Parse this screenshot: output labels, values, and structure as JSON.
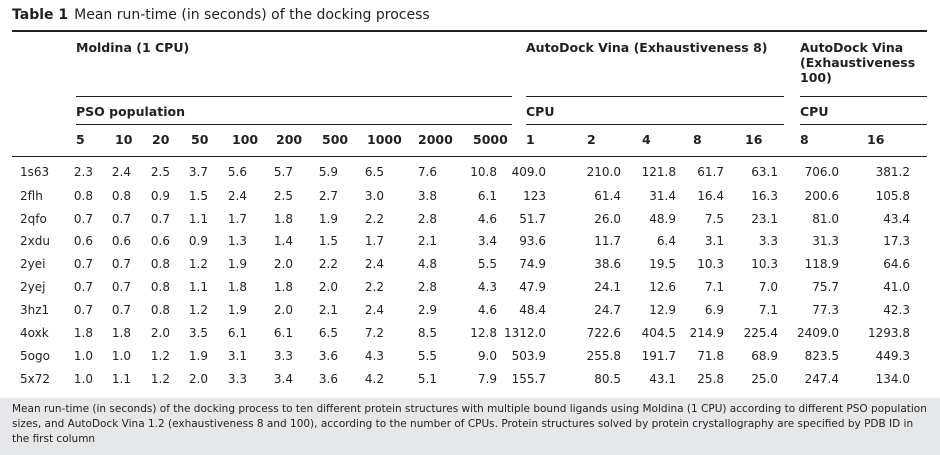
{
  "table": {
    "label": "Table 1",
    "title": "Mean run-time (in seconds) of the docking process",
    "groups": [
      "Moldina (1 CPU)",
      "AutoDock Vina (Exhaustiveness 8)",
      "AutoDock Vina (Exhaustiveness 100)"
    ],
    "subgroups": [
      "PSO population",
      "CPU",
      "CPU"
    ],
    "columns": [
      "5",
      "10",
      "20",
      "50",
      "100",
      "200",
      "500",
      "1000",
      "2000",
      "5000",
      "1",
      "2",
      "4",
      "8",
      "16",
      "8",
      "16"
    ],
    "rows": [
      [
        "1s63",
        "2.3",
        "2.4",
        "2.5",
        "3.7",
        "5.6",
        "5.7",
        "5.9",
        "6.5",
        "7.6",
        "10.8",
        "409.0",
        "210.0",
        "121.8",
        "61.7",
        "63.1",
        "706.0",
        "381.2"
      ],
      [
        "2flh",
        "0.8",
        "0.8",
        "0.9",
        "1.5",
        "2.4",
        "2.5",
        "2.7",
        "3.0",
        "3.8",
        "6.1",
        "123",
        "61.4",
        "31.4",
        "16.4",
        "16.3",
        "200.6",
        "105.8"
      ],
      [
        "2qfo",
        "0.7",
        "0.7",
        "0.7",
        "1.1",
        "1.7",
        "1.8",
        "1.9",
        "2.2",
        "2.8",
        "4.6",
        "51.7",
        "26.0",
        "48.9",
        "7.5",
        "23.1",
        "81.0",
        "43.4"
      ],
      [
        "2xdu",
        "0.6",
        "0.6",
        "0.6",
        "0.9",
        "1.3",
        "1.4",
        "1.5",
        "1.7",
        "2.1",
        "3.4",
        "93.6",
        "11.7",
        "6.4",
        "3.1",
        "3.3",
        "31.3",
        "17.3"
      ],
      [
        "2yei",
        "0.7",
        "0.7",
        "0.8",
        "1.2",
        "1.9",
        "2.0",
        "2.2",
        "2.4",
        "4.8",
        "5.5",
        "74.9",
        "38.6",
        "19.5",
        "10.3",
        "10.3",
        "118.9",
        "64.6"
      ],
      [
        "2yej",
        "0.7",
        "0.7",
        "0.8",
        "1.1",
        "1.8",
        "1.8",
        "2.0",
        "2.2",
        "2.8",
        "4.3",
        "47.9",
        "24.1",
        "12.6",
        "7.1",
        "7.0",
        "75.7",
        "41.0"
      ],
      [
        "3hz1",
        "0.7",
        "0.7",
        "0.8",
        "1.2",
        "1.9",
        "2.0",
        "2.1",
        "2.4",
        "2.9",
        "4.6",
        "48.4",
        "24.7",
        "12.9",
        "6.9",
        "7.1",
        "77.3",
        "42.3"
      ],
      [
        "4oxk",
        "1.8",
        "1.8",
        "2.0",
        "3.5",
        "6.1",
        "6.1",
        "6.5",
        "7.2",
        "8.5",
        "12.8",
        "1312.0",
        "722.6",
        "404.5",
        "214.9",
        "225.4",
        "2409.0",
        "1293.8"
      ],
      [
        "5ogo",
        "1.0",
        "1.0",
        "1.2",
        "1.9",
        "3.1",
        "3.3",
        "3.6",
        "4.3",
        "5.5",
        "9.0",
        "503.9",
        "255.8",
        "191.7",
        "71.8",
        "68.9",
        "823.5",
        "449.3"
      ],
      [
        "5x72",
        "1.0",
        "1.1",
        "1.2",
        "2.0",
        "3.3",
        "3.4",
        "3.6",
        "4.2",
        "5.1",
        "7.9",
        "155.7",
        "80.5",
        "43.1",
        "25.8",
        "25.0",
        "247.4",
        "134.0"
      ]
    ],
    "footnote": "Mean run-time (in seconds) of the docking process to ten different protein structures with multiple bound ligands using Moldina (1 CPU) according to different PSO population sizes, and AutoDock Vina 1.2 (exhaustiveness 8 and 100), according to the number of CPUs. Protein structures solved by protein crystallography are specified by PDB ID in the first column"
  }
}
